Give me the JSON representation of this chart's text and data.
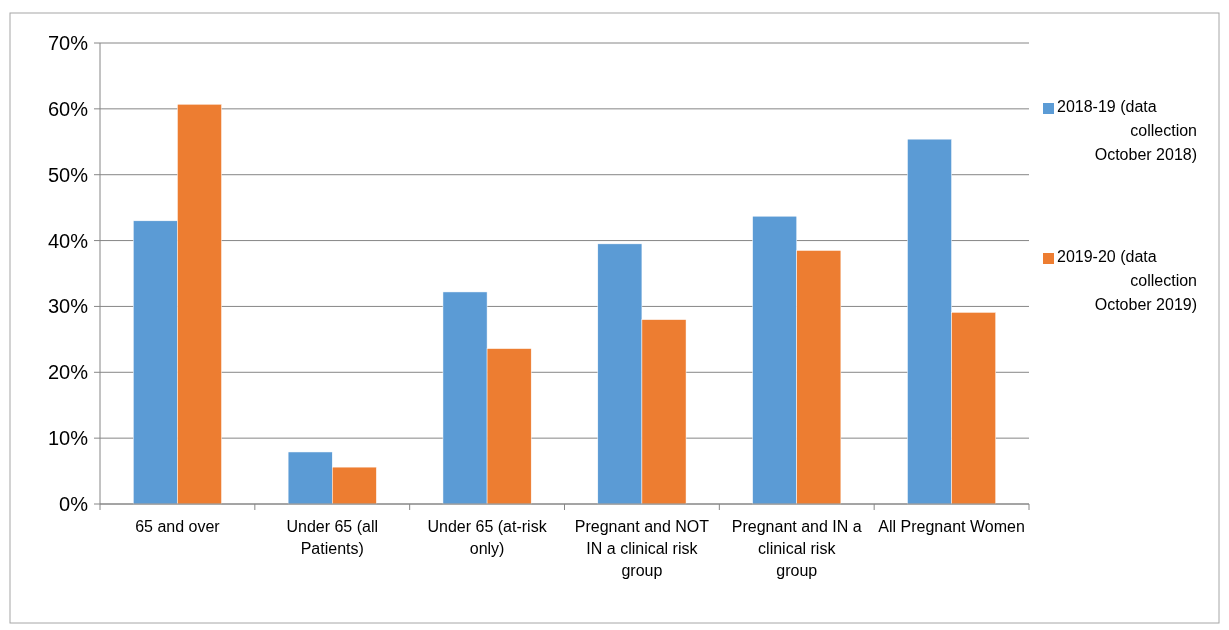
{
  "chart_data": {
    "type": "bar",
    "categories": [
      "65 and over",
      "Under 65 (all Patients)",
      "Under 65 (at-risk only)",
      "Pregnant and NOT IN a clinical risk group",
      "Pregnant and IN a clinical risk group",
      "All Pregnant Women"
    ],
    "series": [
      {
        "name": "2018-19 (data collection October 2018)",
        "color": "#5b9bd5",
        "values": [
          43.0,
          7.9,
          32.2,
          39.5,
          43.7,
          55.4
        ]
      },
      {
        "name": "2019-20 (data collection October 2019)",
        "color": "#ed7d31",
        "values": [
          60.7,
          5.6,
          23.6,
          28.0,
          38.5,
          29.1
        ]
      }
    ],
    "ylim": [
      0,
      70
    ],
    "yticks": [
      {
        "value": 0,
        "label": "0%"
      },
      {
        "value": 10,
        "label": "10%"
      },
      {
        "value": 20,
        "label": "20%"
      },
      {
        "value": 30,
        "label": "30%"
      },
      {
        "value": 40,
        "label": "40%"
      },
      {
        "value": 50,
        "label": "50%"
      },
      {
        "value": 60,
        "label": "60%"
      },
      {
        "value": 70,
        "label": "70%"
      }
    ],
    "grid": "y",
    "legend": "right"
  }
}
